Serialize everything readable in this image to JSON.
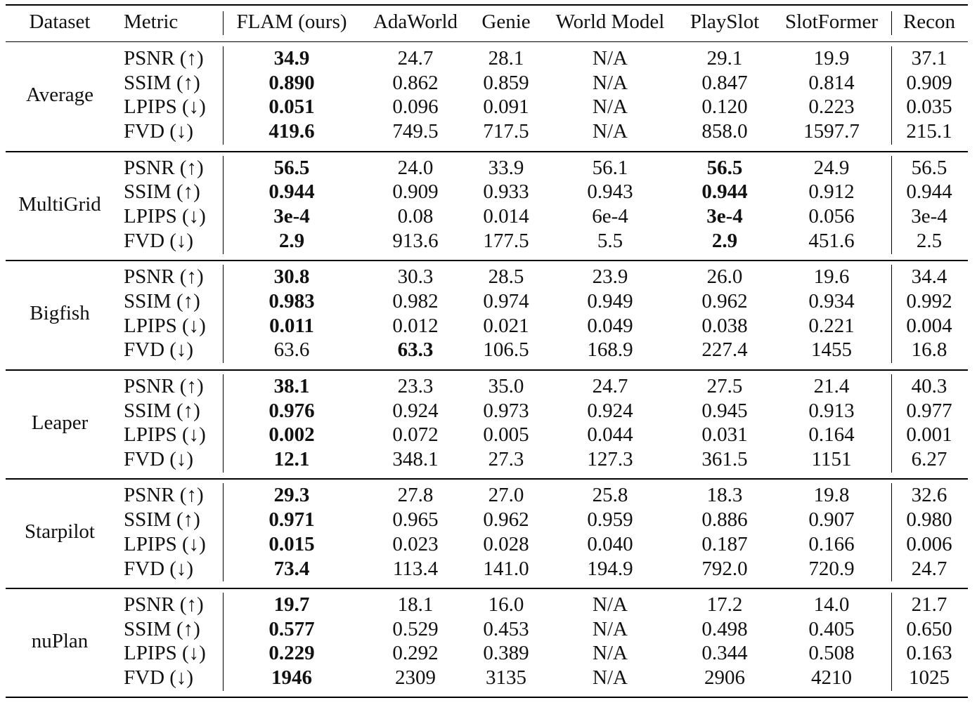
{
  "table": {
    "columns": [
      "Dataset",
      "Metric",
      "FLAM (ours)",
      "AdaWorld",
      "Genie",
      "World Model",
      "PlaySlot",
      "SlotFormer",
      "Recon"
    ],
    "metrics": [
      "PSNR (↑)",
      "SSIM (↑)",
      "LPIPS (↓)",
      "FVD (↓)"
    ],
    "groups": [
      {
        "dataset": "Average",
        "rows": [
          [
            "34.9",
            "24.7",
            "28.1",
            "N/A",
            "29.1",
            "19.9",
            "37.1"
          ],
          [
            "0.890",
            "0.862",
            "0.859",
            "N/A",
            "0.847",
            "0.814",
            "0.909"
          ],
          [
            "0.051",
            "0.096",
            "0.091",
            "N/A",
            "0.120",
            "0.223",
            "0.035"
          ],
          [
            "419.6",
            "749.5",
            "717.5",
            "N/A",
            "858.0",
            "1597.7",
            "215.1"
          ]
        ],
        "bold": [
          [
            0
          ],
          [
            0
          ],
          [
            0
          ],
          [
            0
          ]
        ]
      },
      {
        "dataset": "MultiGrid",
        "rows": [
          [
            "56.5",
            "24.0",
            "33.9",
            "56.1",
            "56.5",
            "24.9",
            "56.5"
          ],
          [
            "0.944",
            "0.909",
            "0.933",
            "0.943",
            "0.944",
            "0.912",
            "0.944"
          ],
          [
            "3e-4",
            "0.08",
            "0.014",
            "6e-4",
            "3e-4",
            "0.056",
            "3e-4"
          ],
          [
            "2.9",
            "913.6",
            "177.5",
            "5.5",
            "2.9",
            "451.6",
            "2.5"
          ]
        ],
        "bold": [
          [
            0,
            4
          ],
          [
            0,
            4
          ],
          [
            0,
            4
          ],
          [
            0,
            4
          ]
        ]
      },
      {
        "dataset": "Bigfish",
        "rows": [
          [
            "30.8",
            "30.3",
            "28.5",
            "23.9",
            "26.0",
            "19.6",
            "34.4"
          ],
          [
            "0.983",
            "0.982",
            "0.974",
            "0.949",
            "0.962",
            "0.934",
            "0.992"
          ],
          [
            "0.011",
            "0.012",
            "0.021",
            "0.049",
            "0.038",
            "0.221",
            "0.004"
          ],
          [
            "63.6",
            "63.3",
            "106.5",
            "168.9",
            "227.4",
            "1455",
            "16.8"
          ]
        ],
        "bold": [
          [
            0
          ],
          [
            0
          ],
          [
            0
          ],
          [
            1
          ]
        ]
      },
      {
        "dataset": "Leaper",
        "rows": [
          [
            "38.1",
            "23.3",
            "35.0",
            "24.7",
            "27.5",
            "21.4",
            "40.3"
          ],
          [
            "0.976",
            "0.924",
            "0.973",
            "0.924",
            "0.945",
            "0.913",
            "0.977"
          ],
          [
            "0.002",
            "0.072",
            "0.005",
            "0.044",
            "0.031",
            "0.164",
            "0.001"
          ],
          [
            "12.1",
            "348.1",
            "27.3",
            "127.3",
            "361.5",
            "1151",
            "6.27"
          ]
        ],
        "bold": [
          [
            0
          ],
          [
            0
          ],
          [
            0
          ],
          [
            0
          ]
        ]
      },
      {
        "dataset": "Starpilot",
        "rows": [
          [
            "29.3",
            "27.8",
            "27.0",
            "25.8",
            "18.3",
            "19.8",
            "32.6"
          ],
          [
            "0.971",
            "0.965",
            "0.962",
            "0.959",
            "0.886",
            "0.907",
            "0.980"
          ],
          [
            "0.015",
            "0.023",
            "0.028",
            "0.040",
            "0.187",
            "0.166",
            "0.006"
          ],
          [
            "73.4",
            "113.4",
            "141.0",
            "194.9",
            "792.0",
            "720.9",
            "24.7"
          ]
        ],
        "bold": [
          [
            0
          ],
          [
            0
          ],
          [
            0
          ],
          [
            0
          ]
        ]
      },
      {
        "dataset": "nuPlan",
        "rows": [
          [
            "19.7",
            "18.1",
            "16.0",
            "N/A",
            "17.2",
            "14.0",
            "21.7"
          ],
          [
            "0.577",
            "0.529",
            "0.453",
            "N/A",
            "0.498",
            "0.405",
            "0.650"
          ],
          [
            "0.229",
            "0.292",
            "0.389",
            "N/A",
            "0.344",
            "0.508",
            "0.163"
          ],
          [
            "1946",
            "2309",
            "3135",
            "N/A",
            "2906",
            "4210",
            "1025"
          ]
        ],
        "bold": [
          [
            0
          ],
          [
            0
          ],
          [
            0
          ],
          [
            0
          ]
        ]
      }
    ]
  }
}
